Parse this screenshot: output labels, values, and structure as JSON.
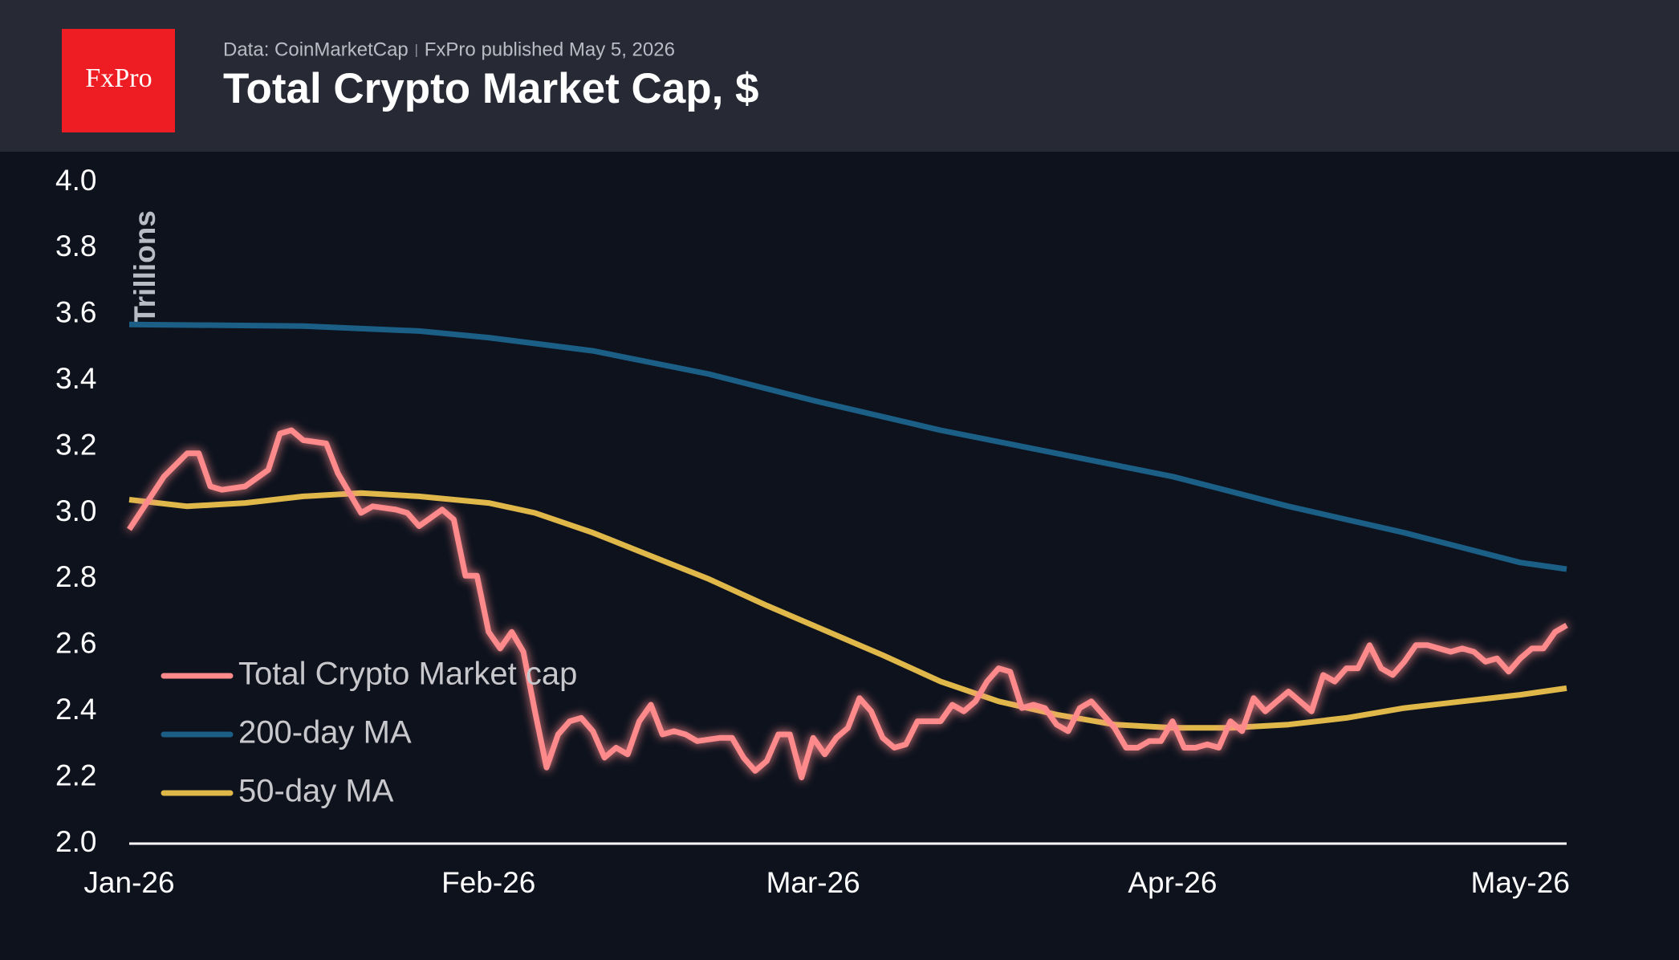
{
  "header": {
    "logo": "FxPro",
    "source": "Data: CoinMarketCap",
    "published": "FxPro published May 5, 2026"
  },
  "chart_data": {
    "type": "line",
    "title": "Total Crypto Market Cap, $",
    "y_label": "Trillions",
    "xlim": [
      0,
      124
    ],
    "xticks": [
      {
        "value": 0,
        "label": "Jan-26"
      },
      {
        "value": 31,
        "label": "Feb-26"
      },
      {
        "value": 59,
        "label": "Mar-26"
      },
      {
        "value": 90,
        "label": "Apr-26"
      },
      {
        "value": 120,
        "label": "May-26"
      }
    ],
    "ylim": [
      2,
      4
    ],
    "yticks": [
      {
        "value": 2,
        "label": "2.0"
      },
      2.2,
      2.4,
      2.6,
      2.8,
      {
        "value": 3,
        "label": "3.0"
      },
      3.2,
      3.4,
      3.6,
      3.8,
      {
        "value": 4,
        "label": "4.0"
      }
    ],
    "legend": "lower-left",
    "series": [
      {
        "name": "Total Crypto Market cap",
        "color": "#ff8a8c",
        "x": [
          0,
          3,
          5,
          6,
          7,
          8,
          10,
          12,
          13,
          14,
          15,
          17,
          18,
          20,
          21,
          23,
          24,
          25,
          27,
          28,
          29,
          30,
          31,
          32,
          33,
          34,
          35,
          36,
          37,
          38,
          39,
          40,
          41,
          42,
          43,
          44,
          45,
          46,
          47,
          48,
          49,
          51,
          52,
          53,
          54,
          55,
          56,
          57,
          58,
          59,
          60,
          61,
          62,
          63,
          64,
          65,
          66,
          67,
          68,
          70,
          71,
          72,
          73,
          74,
          75,
          76,
          77,
          78,
          79,
          80,
          81,
          82,
          83,
          84,
          85,
          86,
          87,
          88,
          89,
          90,
          91,
          92,
          93,
          94,
          95,
          96,
          97,
          98,
          99,
          100,
          101,
          102,
          103,
          104,
          105,
          106,
          107,
          108,
          109,
          110,
          111,
          112,
          113,
          114,
          115,
          116,
          117,
          118,
          119,
          120,
          121,
          122,
          123,
          124
        ],
        "values": [
          2.95,
          3.11,
          3.18,
          3.18,
          3.08,
          3.07,
          3.08,
          3.13,
          3.24,
          3.25,
          3.22,
          3.21,
          3.12,
          3.0,
          3.02,
          3.01,
          3.0,
          2.96,
          3.01,
          2.98,
          2.81,
          2.81,
          2.64,
          2.59,
          2.64,
          2.58,
          2.4,
          2.23,
          2.33,
          2.37,
          2.38,
          2.34,
          2.26,
          2.29,
          2.27,
          2.37,
          2.42,
          2.33,
          2.34,
          2.33,
          2.31,
          2.32,
          2.32,
          2.26,
          2.22,
          2.25,
          2.33,
          2.33,
          2.2,
          2.32,
          2.27,
          2.32,
          2.35,
          2.44,
          2.4,
          2.32,
          2.29,
          2.3,
          2.37,
          2.37,
          2.42,
          2.4,
          2.43,
          2.49,
          2.53,
          2.52,
          2.41,
          2.42,
          2.41,
          2.36,
          2.34,
          2.41,
          2.43,
          2.39,
          2.35,
          2.29,
          2.29,
          2.31,
          2.31,
          2.37,
          2.29,
          2.29,
          2.3,
          2.29,
          2.37,
          2.34,
          2.44,
          2.4,
          2.43,
          2.46,
          2.43,
          2.4,
          2.51,
          2.49,
          2.53,
          2.53,
          2.6,
          2.53,
          2.51,
          2.55,
          2.6,
          2.6,
          2.59,
          2.58,
          2.59,
          2.58,
          2.55,
          2.56,
          2.52,
          2.56,
          2.59,
          2.59,
          2.64,
          2.66
        ]
      },
      {
        "name": "200-day MA",
        "color": "#1b5f86",
        "x": [
          0,
          15,
          25,
          31,
          40,
          50,
          59,
          70,
          80,
          90,
          100,
          110,
          120,
          124
        ],
        "values": [
          3.57,
          3.565,
          3.55,
          3.53,
          3.49,
          3.42,
          3.34,
          3.25,
          3.18,
          3.11,
          3.02,
          2.94,
          2.85,
          2.83
        ]
      },
      {
        "name": "50-day MA",
        "color": "#e0b84a",
        "x": [
          0,
          5,
          10,
          15,
          20,
          25,
          31,
          35,
          40,
          45,
          50,
          55,
          59,
          65,
          70,
          75,
          80,
          85,
          90,
          95,
          100,
          105,
          110,
          115,
          120,
          124
        ],
        "values": [
          3.04,
          3.02,
          3.03,
          3.05,
          3.06,
          3.05,
          3.03,
          3.0,
          2.94,
          2.87,
          2.8,
          2.72,
          2.66,
          2.57,
          2.49,
          2.43,
          2.39,
          2.36,
          2.35,
          2.35,
          2.36,
          2.38,
          2.41,
          2.43,
          2.45,
          2.47
        ]
      }
    ]
  }
}
